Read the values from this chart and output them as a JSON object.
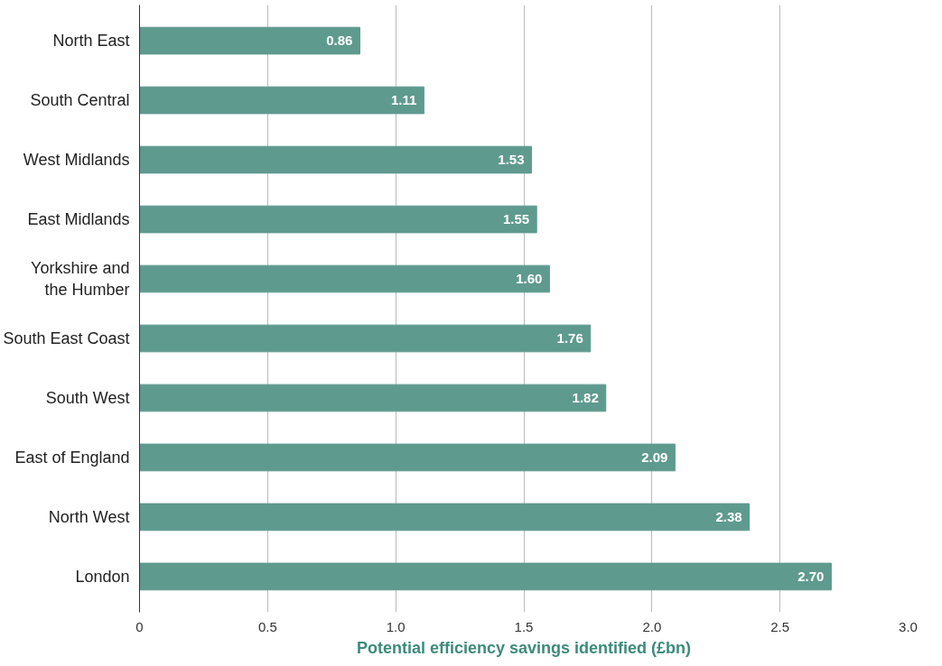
{
  "chart_data": {
    "type": "bar",
    "orientation": "horizontal",
    "xlabel": "Potential efficiency savings identified (£bn)",
    "categories": [
      "North East",
      "South Central",
      "West Midlands",
      "East Midlands",
      "Yorkshire and the Humber",
      "South East Coast",
      "South West",
      "East of England",
      "North West",
      "London"
    ],
    "values": [
      0.86,
      1.11,
      1.53,
      1.55,
      1.6,
      1.76,
      1.82,
      2.09,
      2.38,
      2.7
    ],
    "color": "#5f9a8f",
    "value_labels": [
      "0.86",
      "1.11",
      "1.53",
      "1.55",
      "1.60",
      "1.76",
      "1.82",
      "2.09",
      "2.38",
      "2.70"
    ],
    "xlim": [
      0,
      3.0
    ],
    "xticks": [
      0,
      0.5,
      {
        "value": 1,
        "label": "1.0"
      },
      1.5,
      {
        "value": 2,
        "label": "2.0"
      },
      2.5,
      {
        "value": 3,
        "label": "3.0"
      }
    ],
    "grid": "x"
  }
}
